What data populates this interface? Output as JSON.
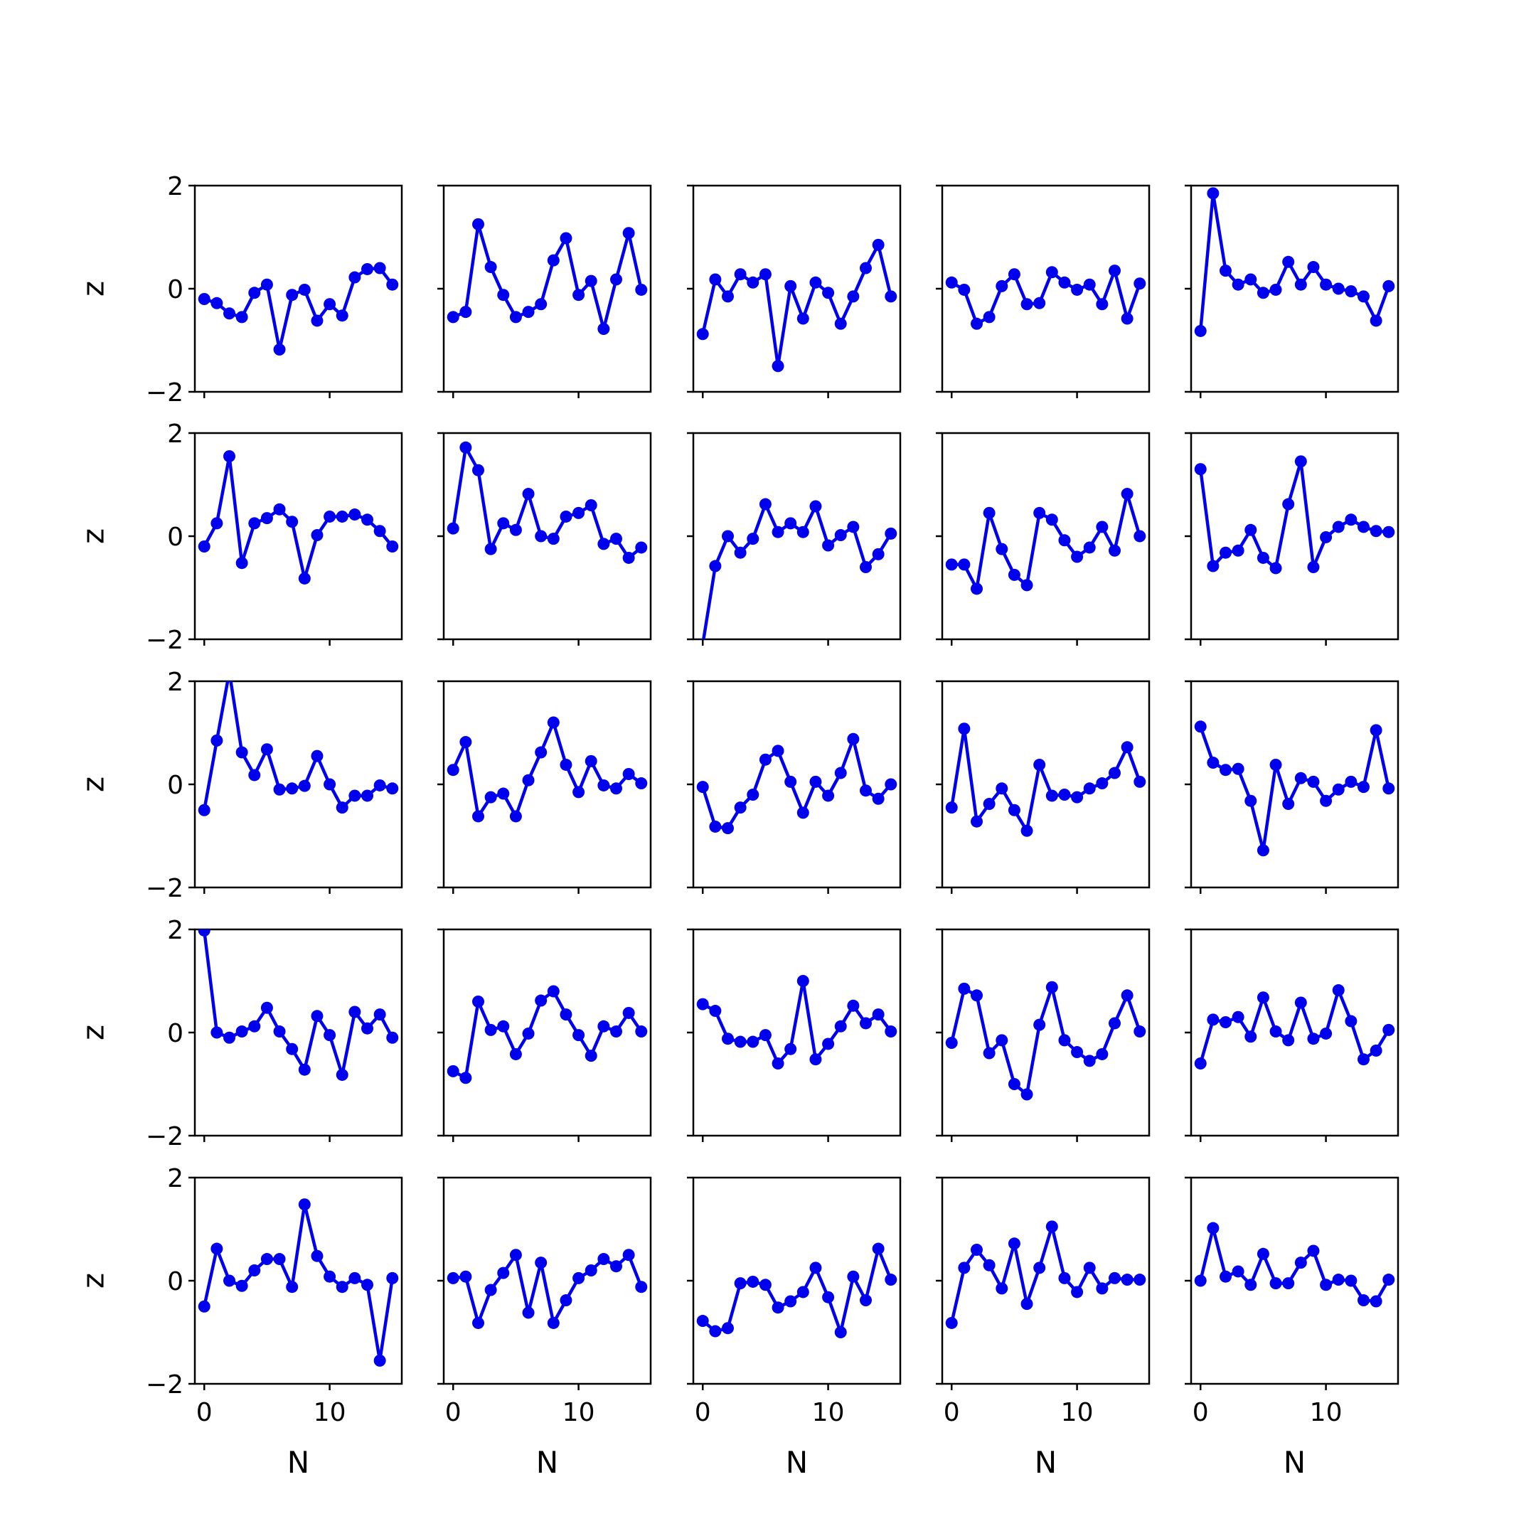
{
  "chart_data": {
    "type": "line",
    "layout": "5x5 grid of subplots, shared axes",
    "xlabel": "N",
    "ylabel": "z",
    "xlim": [
      -0.75,
      15.75
    ],
    "ylim": [
      -2,
      2
    ],
    "xticks": [
      0,
      10
    ],
    "xtick_labels": [
      "0",
      "10"
    ],
    "yticks": [
      -2,
      0,
      2
    ],
    "ytick_labels": [
      "−2",
      "0",
      "2"
    ],
    "line_color": "#0000ee",
    "marker": "filled circle",
    "grid": false,
    "x": [
      0,
      1,
      2,
      3,
      4,
      5,
      6,
      7,
      8,
      9,
      10,
      11,
      12,
      13,
      14,
      15
    ],
    "panels": [
      [
        [
          -0.2,
          -0.28,
          -0.48,
          -0.55,
          -0.08,
          0.08,
          -1.18,
          -0.12,
          -0.02,
          -0.62,
          -0.3,
          -0.52,
          0.22,
          0.38,
          0.4,
          0.08
        ],
        [
          -0.55,
          -0.45,
          1.25,
          0.42,
          -0.12,
          -0.55,
          -0.45,
          -0.3,
          0.55,
          0.98,
          -0.12,
          0.15,
          -0.78,
          0.18,
          1.08,
          -0.02
        ],
        [
          -0.88,
          0.18,
          -0.15,
          0.28,
          0.12,
          0.28,
          -1.5,
          0.05,
          -0.58,
          0.12,
          -0.08,
          -0.68,
          -0.15,
          0.4,
          0.85,
          -0.15
        ],
        [
          0.12,
          -0.02,
          -0.68,
          -0.55,
          0.05,
          0.28,
          -0.3,
          -0.28,
          0.32,
          0.12,
          -0.02,
          0.08,
          -0.3,
          0.35,
          -0.58,
          0.1
        ],
        [
          -0.82,
          1.85,
          0.35,
          0.08,
          0.18,
          -0.08,
          -0.02,
          0.52,
          0.08,
          0.42,
          0.08,
          0.0,
          -0.05,
          -0.15,
          -0.62,
          0.05
        ]
      ],
      [
        [
          -0.2,
          0.25,
          1.55,
          -0.52,
          0.25,
          0.35,
          0.52,
          0.28,
          -0.82,
          0.02,
          0.38,
          0.38,
          0.42,
          0.32,
          0.1,
          -0.2
        ],
        [
          0.15,
          1.72,
          1.28,
          -0.25,
          0.25,
          0.12,
          0.82,
          0.0,
          -0.05,
          0.38,
          0.45,
          0.6,
          -0.15,
          -0.05,
          -0.42,
          -0.22
        ],
        [
          -2.1,
          -0.58,
          0.0,
          -0.32,
          -0.05,
          0.62,
          0.08,
          0.25,
          0.08,
          0.58,
          -0.18,
          0.02,
          0.18,
          -0.6,
          -0.35,
          0.05
        ],
        [
          -0.55,
          -0.55,
          -1.02,
          0.45,
          -0.25,
          -0.75,
          -0.95,
          0.45,
          0.32,
          -0.08,
          -0.4,
          -0.22,
          0.18,
          -0.28,
          0.82,
          0.0
        ],
        [
          1.3,
          -0.58,
          -0.32,
          -0.28,
          0.12,
          -0.42,
          -0.62,
          0.62,
          1.45,
          -0.6,
          -0.02,
          0.18,
          0.32,
          0.18,
          0.1,
          0.08
        ]
      ],
      [
        [
          -0.5,
          0.85,
          2.18,
          0.62,
          0.18,
          0.68,
          -0.1,
          -0.08,
          -0.03,
          0.55,
          0.0,
          -0.45,
          -0.22,
          -0.22,
          -0.02,
          -0.08
        ],
        [
          0.28,
          0.82,
          -0.62,
          -0.25,
          -0.18,
          -0.62,
          0.08,
          0.62,
          1.2,
          0.38,
          -0.15,
          0.45,
          -0.02,
          -0.08,
          0.2,
          0.02
        ],
        [
          -0.05,
          -0.82,
          -0.85,
          -0.45,
          -0.2,
          0.48,
          0.65,
          0.05,
          -0.55,
          0.05,
          -0.22,
          0.22,
          0.88,
          -0.12,
          -0.28,
          0.0
        ],
        [
          -0.45,
          1.08,
          -0.72,
          -0.38,
          -0.08,
          -0.5,
          -0.9,
          0.38,
          -0.22,
          -0.2,
          -0.25,
          -0.08,
          0.02,
          0.22,
          0.72,
          0.05
        ],
        [
          1.12,
          0.42,
          0.28,
          0.3,
          -0.32,
          -1.28,
          0.38,
          -0.38,
          0.12,
          0.05,
          -0.32,
          -0.1,
          0.05,
          -0.05,
          1.05,
          -0.08
        ]
      ],
      [
        [
          1.98,
          0.0,
          -0.1,
          0.02,
          0.12,
          0.48,
          0.02,
          -0.32,
          -0.72,
          0.32,
          -0.05,
          -0.82,
          0.4,
          0.08,
          0.35,
          -0.1
        ],
        [
          -0.75,
          -0.88,
          0.6,
          0.05,
          0.12,
          -0.42,
          -0.02,
          0.62,
          0.8,
          0.35,
          -0.05,
          -0.45,
          0.12,
          0.02,
          0.38,
          0.02
        ],
        [
          0.55,
          0.42,
          -0.12,
          -0.18,
          -0.18,
          -0.05,
          -0.6,
          -0.32,
          1.0,
          -0.52,
          -0.22,
          0.12,
          0.52,
          0.18,
          0.35,
          0.02
        ],
        [
          -0.2,
          0.85,
          0.72,
          -0.4,
          -0.15,
          -1.0,
          -1.2,
          0.15,
          0.88,
          -0.15,
          -0.38,
          -0.55,
          -0.42,
          0.18,
          0.72,
          0.02
        ],
        [
          -0.6,
          0.25,
          0.2,
          0.3,
          -0.08,
          0.68,
          0.02,
          -0.15,
          0.58,
          -0.12,
          -0.02,
          0.82,
          0.22,
          -0.52,
          -0.35,
          0.05
        ]
      ],
      [
        [
          -0.5,
          0.62,
          0.0,
          -0.1,
          0.2,
          0.42,
          0.42,
          -0.12,
          1.48,
          0.48,
          0.08,
          -0.12,
          0.05,
          -0.08,
          -1.55,
          0.05
        ],
        [
          0.05,
          0.08,
          -0.82,
          -0.18,
          0.15,
          0.5,
          -0.62,
          0.35,
          -0.82,
          -0.38,
          0.05,
          0.2,
          0.42,
          0.28,
          0.5,
          -0.12
        ],
        [
          -0.78,
          -0.98,
          -0.92,
          -0.05,
          -0.02,
          -0.08,
          -0.52,
          -0.4,
          -0.22,
          0.25,
          -0.32,
          -1.0,
          0.08,
          -0.38,
          0.62,
          0.02
        ],
        [
          -0.82,
          0.25,
          0.6,
          0.3,
          -0.15,
          0.72,
          -0.45,
          0.25,
          1.05,
          0.05,
          -0.22,
          0.25,
          -0.15,
          0.05,
          0.02,
          0.02
        ],
        [
          0.0,
          1.02,
          0.08,
          0.18,
          -0.08,
          0.52,
          -0.05,
          -0.05,
          0.35,
          0.58,
          -0.08,
          0.02,
          0.0,
          -0.38,
          -0.4,
          0.02
        ]
      ]
    ]
  }
}
